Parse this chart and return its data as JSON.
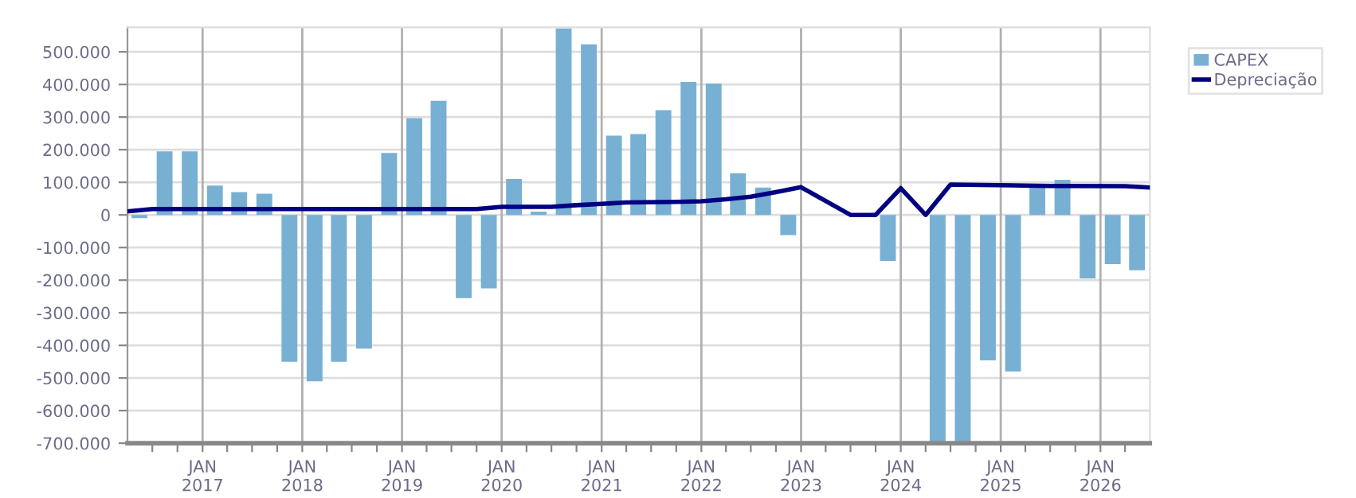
{
  "chart_data": {
    "type": "bar",
    "x": [
      "2016-05-15",
      "2016-08-15",
      "2016-11-15",
      "2017-02-15",
      "2017-05-15",
      "2017-08-15",
      "2017-11-15",
      "2018-02-15",
      "2018-05-15",
      "2018-08-15",
      "2018-11-15",
      "2019-02-15",
      "2019-05-15",
      "2019-08-15",
      "2019-11-15",
      "2020-02-15",
      "2020-05-15",
      "2020-08-15",
      "2020-11-15",
      "2021-02-15",
      "2021-05-15",
      "2021-08-15",
      "2021-11-15",
      "2022-02-15",
      "2022-05-15",
      "2022-08-15",
      "2022-11-15",
      "2023-02-15",
      "2023-05-15",
      "2023-08-15",
      "2023-11-15",
      "2024-02-15",
      "2024-05-15",
      "2024-08-15",
      "2024-11-15",
      "2025-02-15",
      "2025-05-15",
      "2025-08-15",
      "2025-11-15",
      "2026-02-15",
      "2026-05-15"
    ],
    "series": [
      {
        "name": "CAPEX",
        "color": "#78b0d4",
        "values": [
          -10000,
          195000,
          195000,
          90000,
          70000,
          65000,
          -450000,
          -510000,
          -450000,
          -410000,
          190000,
          297000,
          350000,
          -255000,
          -225000,
          110000,
          10000,
          572000,
          523000,
          243000,
          248000,
          321000,
          408000,
          403000,
          128000,
          84000,
          -62000,
          0,
          0,
          0,
          -141000,
          0,
          -700000,
          -695000,
          -446000,
          -480000,
          84000,
          108000,
          -195000,
          -151000,
          -170000
        ]
      },
      {
        "name": "Depreciação",
        "type": "line",
        "color": "#000080",
        "x": [
          "2016-04-01",
          "2016-07-01",
          "2019-10-01",
          "2020-01-01",
          "2020-07-01",
          "2020-10-01",
          "2021-01-01",
          "2021-04-01",
          "2021-10-01",
          "2022-01-01",
          "2022-04-01",
          "2022-07-01",
          "2022-10-01",
          "2023-01-01",
          "2023-07-01",
          "2023-10-01",
          "2024-01-01",
          "2024-04-01",
          "2024-07-01",
          "2025-07-01",
          "2026-04-01",
          "2026-07-01"
        ],
        "values": [
          11000,
          18000,
          18000,
          25000,
          25000,
          30000,
          34000,
          38000,
          40000,
          42000,
          48000,
          56000,
          70000,
          85000,
          0,
          0,
          82000,
          0,
          93000,
          89000,
          88000,
          84000
        ]
      }
    ],
    "xlim": [
      "2016-04-01",
      "2026-07-01"
    ],
    "xticks": [
      {
        "value": "2016-07-01",
        "label": null
      },
      {
        "value": "2016-10-01",
        "label": null
      },
      {
        "value": "2017-01-01",
        "label": "JAN\n2017"
      },
      {
        "value": "2017-04-01",
        "label": null
      },
      {
        "value": "2017-07-01",
        "label": null
      },
      {
        "value": "2017-10-01",
        "label": null
      },
      {
        "value": "2018-01-01",
        "label": "JAN\n2018"
      },
      {
        "value": "2018-04-01",
        "label": null
      },
      {
        "value": "2018-07-01",
        "label": null
      },
      {
        "value": "2018-10-01",
        "label": null
      },
      {
        "value": "2019-01-01",
        "label": "JAN\n2019"
      },
      {
        "value": "2019-04-01",
        "label": null
      },
      {
        "value": "2019-07-01",
        "label": null
      },
      {
        "value": "2019-10-01",
        "label": null
      },
      {
        "value": "2020-01-01",
        "label": "JAN\n2020"
      },
      {
        "value": "2020-04-01",
        "label": null
      },
      {
        "value": "2020-07-01",
        "label": null
      },
      {
        "value": "2020-10-01",
        "label": null
      },
      {
        "value": "2021-01-01",
        "label": "JAN\n2021"
      },
      {
        "value": "2021-04-01",
        "label": null
      },
      {
        "value": "2021-07-01",
        "label": null
      },
      {
        "value": "2021-10-01",
        "label": null
      },
      {
        "value": "2022-01-01",
        "label": "JAN\n2022"
      },
      {
        "value": "2022-04-01",
        "label": null
      },
      {
        "value": "2022-07-01",
        "label": null
      },
      {
        "value": "2022-10-01",
        "label": null
      },
      {
        "value": "2023-01-01",
        "label": "JAN\n2023"
      },
      {
        "value": "2023-04-01",
        "label": null
      },
      {
        "value": "2023-07-01",
        "label": null
      },
      {
        "value": "2023-10-01",
        "label": null
      },
      {
        "value": "2024-01-01",
        "label": "JAN\n2024"
      },
      {
        "value": "2024-04-01",
        "label": null
      },
      {
        "value": "2024-07-01",
        "label": null
      },
      {
        "value": "2024-10-01",
        "label": null
      },
      {
        "value": "2025-01-01",
        "label": "JAN\n2025"
      },
      {
        "value": "2025-04-01",
        "label": null
      },
      {
        "value": "2025-07-01",
        "label": null
      },
      {
        "value": "2025-10-01",
        "label": null
      },
      {
        "value": "2026-01-01",
        "label": "JAN\n2026"
      },
      {
        "value": "2026-04-01",
        "label": null
      }
    ],
    "ylim": [
      -700000,
      575000
    ],
    "yticks": [
      {
        "value": -700000,
        "label": "-700.000"
      },
      {
        "value": -600000,
        "label": "-600.000"
      },
      {
        "value": -500000,
        "label": "-500.000"
      },
      {
        "value": -400000,
        "label": "-400.000"
      },
      {
        "value": -300000,
        "label": "-300.000"
      },
      {
        "value": -200000,
        "label": "-200.000"
      },
      {
        "value": -100000,
        "label": "-100.000"
      },
      {
        "value": 0,
        "label": "0"
      },
      {
        "value": 100000,
        "label": "100.000"
      },
      {
        "value": 200000,
        "label": "200.000"
      },
      {
        "value": 300000,
        "label": "300.000"
      },
      {
        "value": 400000,
        "label": "400.000"
      },
      {
        "value": 500000,
        "label": "500.000"
      }
    ],
    "grid": true,
    "legend": "right"
  }
}
